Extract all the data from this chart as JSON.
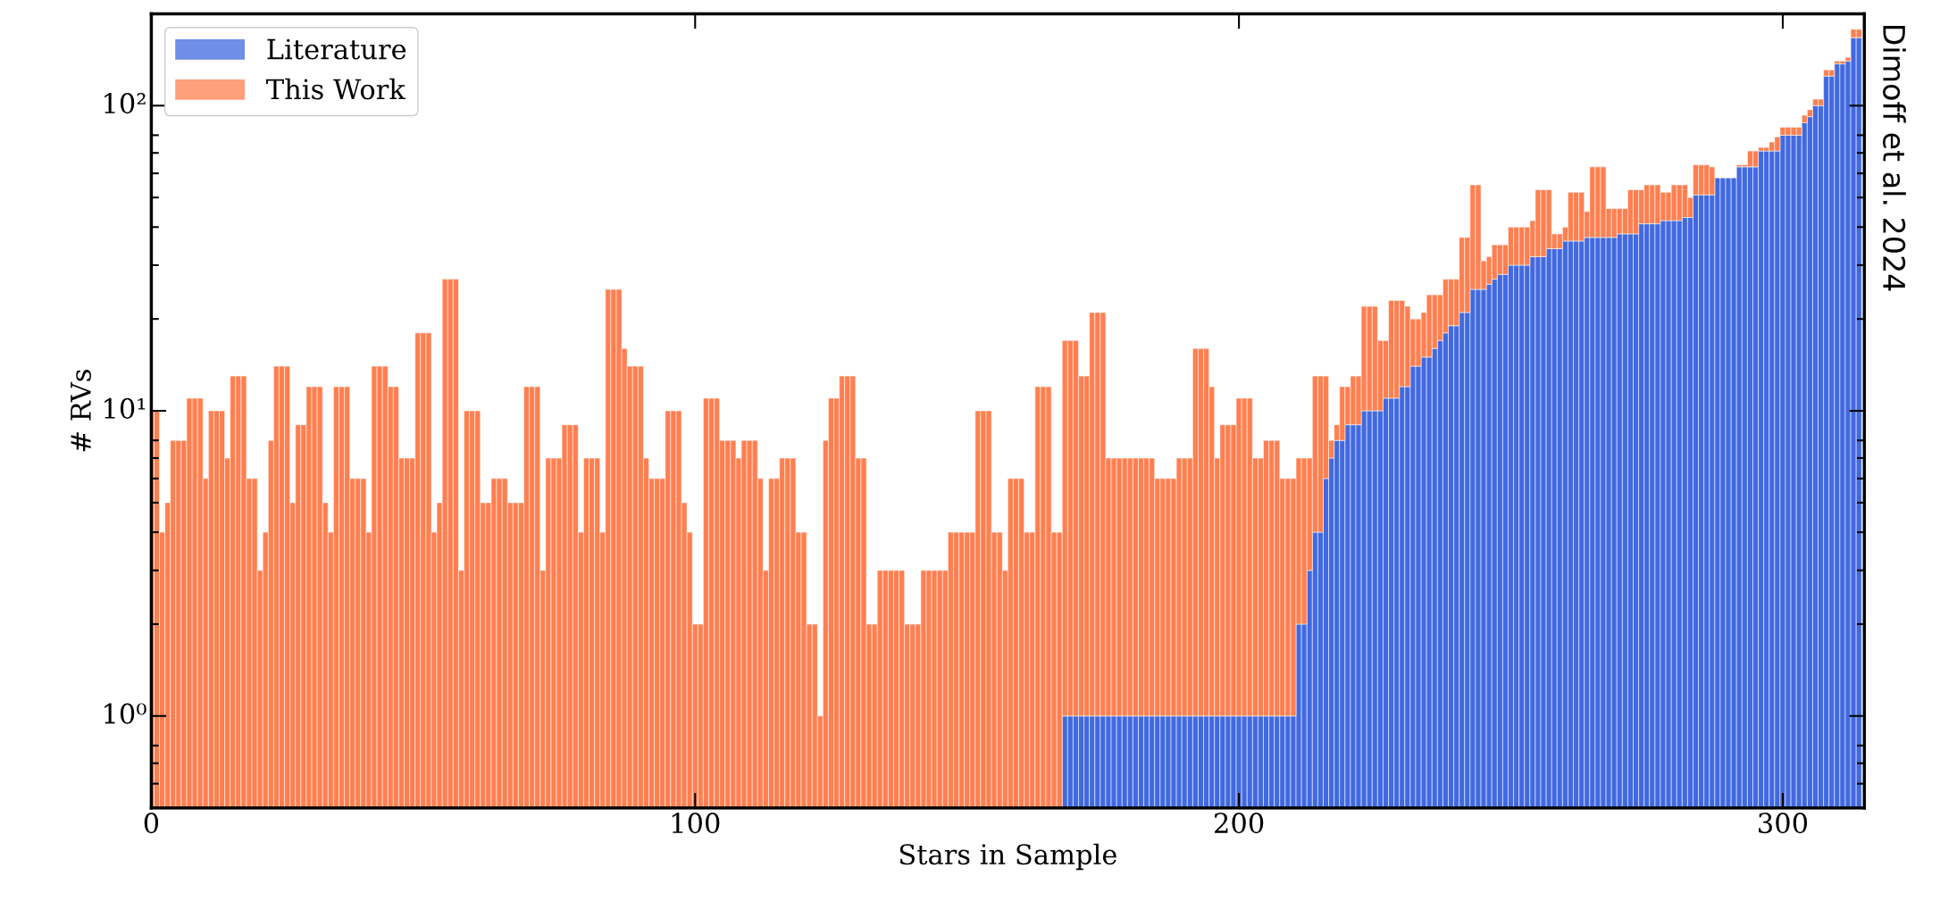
{
  "chart_data": {
    "type": "bar",
    "stacked": true,
    "log": "y",
    "grid": false,
    "legend": "top left",
    "xlabel": "Stars in Sample",
    "ylabel": "# RVs",
    "xlim": [
      0,
      315
    ],
    "xticks": [
      0,
      100,
      200,
      300
    ],
    "ylim": [
      0.5,
      200
    ],
    "yticks": [
      {
        "value": 1,
        "label": "10⁰"
      },
      {
        "value": 10,
        "label": "10¹"
      },
      {
        "value": 100,
        "label": "10²"
      }
    ],
    "annotations": [
      "Dimoff et al. 2024"
    ],
    "x": [
      0,
      1,
      2,
      3,
      4,
      5,
      6,
      7,
      8,
      9,
      10,
      11,
      12,
      13,
      14,
      15,
      16,
      17,
      18,
      19,
      20,
      21,
      22,
      23,
      24,
      25,
      26,
      27,
      28,
      29,
      30,
      31,
      32,
      33,
      34,
      35,
      36,
      37,
      38,
      39,
      40,
      41,
      42,
      43,
      44,
      45,
      46,
      47,
      48,
      49,
      50,
      51,
      52,
      53,
      54,
      55,
      56,
      57,
      58,
      59,
      60,
      61,
      62,
      63,
      64,
      65,
      66,
      67,
      68,
      69,
      70,
      71,
      72,
      73,
      74,
      75,
      76,
      77,
      78,
      79,
      80,
      81,
      82,
      83,
      84,
      85,
      86,
      87,
      88,
      89,
      90,
      91,
      92,
      93,
      94,
      95,
      96,
      97,
      98,
      99,
      100,
      101,
      102,
      103,
      104,
      105,
      106,
      107,
      108,
      109,
      110,
      111,
      112,
      113,
      114,
      115,
      116,
      117,
      118,
      119,
      120,
      121,
      122,
      123,
      124,
      125,
      126,
      127,
      128,
      129,
      130,
      131,
      132,
      133,
      134,
      135,
      136,
      137,
      138,
      139,
      140,
      141,
      142,
      143,
      144,
      145,
      146,
      147,
      148,
      149,
      150,
      151,
      152,
      153,
      154,
      155,
      156,
      157,
      158,
      159,
      160,
      161,
      162,
      163,
      164,
      165,
      166,
      167,
      168,
      169,
      170,
      171,
      172,
      173,
      174,
      175,
      176,
      177,
      178,
      179,
      180,
      181,
      182,
      183,
      184,
      185,
      186,
      187,
      188,
      189,
      190,
      191,
      192,
      193,
      194,
      195,
      196,
      197,
      198,
      199,
      200,
      201,
      202,
      203,
      204,
      205,
      206,
      207,
      208,
      209,
      210,
      211,
      212,
      213,
      214,
      215,
      216,
      217,
      218,
      219,
      220,
      221,
      222,
      223,
      224,
      225,
      226,
      227,
      228,
      229,
      230,
      231,
      232,
      233,
      234,
      235,
      236,
      237,
      238,
      239,
      240,
      241,
      242,
      243,
      244,
      245,
      246,
      247,
      248,
      249,
      250,
      251,
      252,
      253,
      254,
      255,
      256,
      257,
      258,
      259,
      260,
      261,
      262,
      263,
      264,
      265,
      266,
      267,
      268,
      269,
      270,
      271,
      272,
      273,
      274,
      275,
      276,
      277,
      278,
      279,
      280,
      281,
      282,
      283,
      284,
      285,
      286,
      287,
      288,
      289,
      290,
      291,
      292,
      293,
      294,
      295,
      296,
      297,
      298,
      299,
      300,
      301,
      302,
      303,
      304,
      305,
      306,
      307,
      308,
      309,
      310,
      311,
      312,
      313,
      314
    ],
    "series": [
      {
        "name": "Literature",
        "color": "#4169e1",
        "values": [
          null,
          null,
          null,
          null,
          null,
          null,
          null,
          null,
          null,
          null,
          null,
          null,
          null,
          null,
          null,
          null,
          null,
          null,
          null,
          null,
          null,
          null,
          null,
          null,
          null,
          null,
          null,
          null,
          null,
          null,
          null,
          null,
          null,
          null,
          null,
          null,
          null,
          null,
          null,
          null,
          null,
          null,
          null,
          null,
          null,
          null,
          null,
          null,
          null,
          null,
          null,
          null,
          null,
          null,
          null,
          null,
          null,
          null,
          null,
          null,
          null,
          null,
          null,
          null,
          null,
          null,
          null,
          null,
          null,
          null,
          null,
          null,
          null,
          null,
          null,
          null,
          null,
          null,
          null,
          null,
          null,
          null,
          null,
          null,
          null,
          null,
          null,
          null,
          null,
          null,
          null,
          null,
          null,
          null,
          null,
          null,
          null,
          null,
          null,
          null,
          null,
          null,
          null,
          null,
          null,
          null,
          null,
          null,
          null,
          null,
          null,
          null,
          null,
          null,
          null,
          null,
          null,
          null,
          null,
          null,
          null,
          null,
          null,
          null,
          null,
          null,
          null,
          null,
          null,
          null,
          null,
          null,
          null,
          null,
          null,
          null,
          null,
          null,
          null,
          null,
          null,
          null,
          null,
          null,
          null,
          null,
          null,
          null,
          null,
          null,
          null,
          null,
          null,
          null,
          null,
          null,
          null,
          null,
          null,
          null,
          null,
          null,
          null,
          null,
          null,
          null,
          null,
          null,
          1,
          1,
          1,
          1,
          1,
          1,
          1,
          1,
          1,
          1,
          1,
          1,
          1,
          1,
          1,
          1,
          1,
          1,
          1,
          1,
          1,
          1,
          1,
          1,
          1,
          1,
          1,
          1,
          1,
          1,
          1,
          1,
          1,
          1,
          1,
          1,
          1,
          1,
          1,
          1,
          1,
          1,
          1,
          2,
          2,
          3,
          4,
          4,
          6,
          7,
          8,
          8,
          9,
          9,
          9,
          10,
          10,
          10,
          10,
          11,
          11,
          11,
          12,
          12,
          14,
          14,
          15,
          15,
          16,
          17,
          18,
          19,
          19,
          21,
          21,
          25,
          25,
          25,
          26,
          27,
          28,
          28,
          30,
          30,
          30,
          30,
          32,
          32,
          32,
          34,
          34,
          34,
          36,
          36,
          36,
          36,
          37,
          37,
          37,
          37,
          37,
          37,
          38,
          38,
          38,
          38,
          41,
          41,
          41,
          41,
          42,
          42,
          42,
          42,
          43,
          43,
          51,
          51,
          51,
          51,
          58,
          58,
          58,
          58,
          63,
          63,
          63,
          63,
          71,
          71,
          71,
          71,
          80,
          80,
          80,
          80,
          88,
          92,
          100,
          100,
          125,
          125,
          137,
          137,
          140,
          167,
          167
        ]
      },
      {
        "name": "This Work",
        "color": "#ff7f50",
        "values": [
          10,
          10,
          4,
          5,
          8,
          8,
          8,
          11,
          11,
          11,
          6,
          10,
          10,
          10,
          7,
          13,
          13,
          13,
          6,
          6,
          3,
          4,
          8,
          14,
          14,
          14,
          5,
          9,
          9,
          12,
          12,
          12,
          5,
          4,
          12,
          12,
          12,
          6,
          6,
          6,
          4,
          14,
          14,
          14,
          12,
          12,
          7,
          7,
          7,
          18,
          18,
          18,
          4,
          5,
          27,
          27,
          27,
          3,
          10,
          10,
          10,
          5,
          5,
          6,
          6,
          6,
          5,
          5,
          5,
          12,
          12,
          12,
          3,
          7,
          7,
          7,
          9,
          9,
          9,
          4,
          7,
          7,
          7,
          4,
          25,
          25,
          25,
          16,
          14,
          14,
          14,
          7,
          6,
          6,
          6,
          10,
          10,
          10,
          5,
          4,
          2,
          2,
          11,
          11,
          11,
          8,
          8,
          8,
          7,
          8,
          8,
          8,
          6,
          3,
          6,
          6,
          7,
          7,
          7,
          4,
          4,
          2,
          2,
          1,
          8,
          11,
          11,
          13,
          13,
          13,
          7,
          7,
          2,
          2,
          3,
          3,
          3,
          3,
          3,
          2,
          2,
          2,
          3,
          3,
          3,
          3,
          3,
          4,
          4,
          4,
          4,
          4,
          10,
          10,
          10,
          4,
          4,
          3,
          6,
          6,
          6,
          4,
          4,
          12,
          12,
          12,
          4,
          4,
          16,
          16,
          16,
          12,
          12,
          20,
          20,
          20,
          6,
          6,
          6,
          6,
          6,
          6,
          6,
          6,
          6,
          5,
          5,
          5,
          5,
          6,
          6,
          6,
          15,
          15,
          15,
          11,
          6,
          8,
          8,
          8,
          10,
          10,
          10,
          6,
          6,
          7,
          7,
          7,
          5,
          5,
          5,
          5,
          5,
          4,
          9,
          9,
          7,
          1,
          1,
          4,
          3,
          4,
          4,
          12,
          12,
          12,
          7,
          6,
          12,
          12,
          11,
          10,
          6,
          6,
          6,
          9,
          8,
          7,
          9,
          8,
          8,
          16,
          16,
          30,
          30,
          6,
          6,
          8,
          7,
          7,
          10,
          10,
          10,
          10,
          10,
          21,
          21,
          19,
          4,
          4,
          4,
          16,
          16,
          16,
          8,
          26,
          26,
          26,
          9,
          9,
          8,
          8,
          15,
          15,
          12,
          14,
          14,
          14,
          10,
          10,
          13,
          13,
          12,
          7,
          13,
          13,
          13,
          12,
          null,
          null,
          null,
          null,
          1,
          1,
          8,
          8,
          2,
          2,
          5,
          8,
          5,
          5,
          5,
          5,
          5,
          5,
          5,
          5,
          6,
          6,
          3,
          3,
          4,
          11,
          11
        ]
      }
    ]
  }
}
